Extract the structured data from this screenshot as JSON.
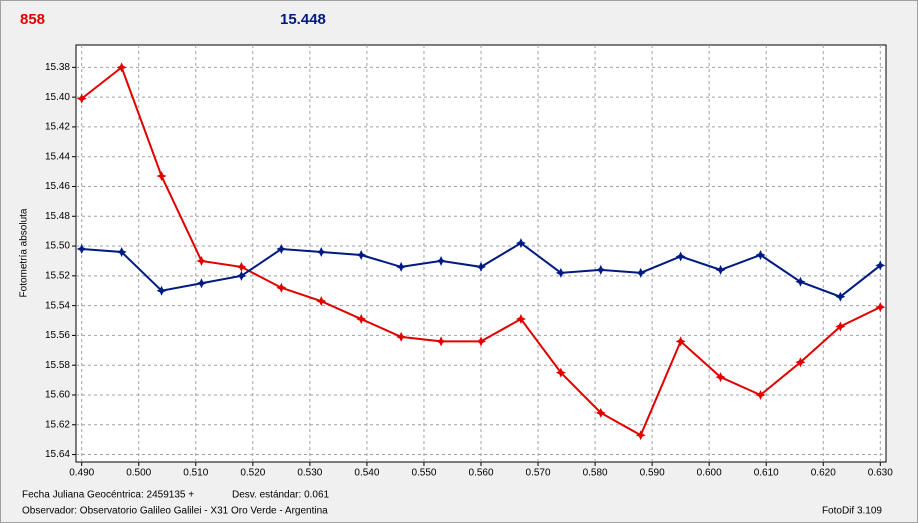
{
  "chart_data": {
    "type": "line",
    "header_left": "858",
    "header_right": "15.448",
    "y_label": "Fotometría absoluta",
    "footer": {
      "date": "Fecha Juliana Geocéntrica: 2459135 +",
      "deviation": "Desv. estándar: 0.061",
      "observer": "Observador: Observatorio Galileo Galilei - X31 Oro Verde - Argentina",
      "version": "FotoDif 3.109"
    },
    "x": [
      0.49,
      0.497,
      0.504,
      0.511,
      0.518,
      0.525,
      0.532,
      0.539,
      0.546,
      0.553,
      0.56,
      0.567,
      0.574,
      0.581,
      0.588,
      0.595,
      0.602,
      0.609,
      0.616,
      0.623,
      0.63
    ],
    "series": [
      {
        "color": "#e00000",
        "values": [
          15.401,
          15.38,
          15.453,
          15.51,
          15.514,
          15.528,
          15.537,
          15.549,
          15.561,
          15.564,
          15.564,
          15.549,
          15.585,
          15.612,
          15.627,
          15.564,
          15.588,
          15.6,
          15.578,
          15.554,
          15.541
        ]
      },
      {
        "color": "#001a80",
        "values": [
          15.502,
          15.504,
          15.53,
          15.525,
          15.52,
          15.502,
          15.504,
          15.506,
          15.514,
          15.51,
          15.514,
          15.498,
          15.518,
          15.516,
          15.518,
          15.507,
          15.516,
          15.506,
          15.524,
          15.534,
          15.513
        ]
      }
    ],
    "xlim": [
      0.489,
      0.631
    ],
    "xticks": [
      {
        "value": 0.49,
        "label": "0.490"
      },
      {
        "value": 0.5,
        "label": "0.500"
      },
      {
        "value": 0.51,
        "label": "0.510"
      },
      {
        "value": 0.52,
        "label": "0.520"
      },
      {
        "value": 0.53,
        "label": "0.530"
      },
      {
        "value": 0.54,
        "label": "0.540"
      },
      {
        "value": 0.55,
        "label": "0.550"
      },
      {
        "value": 0.56,
        "label": "0.560"
      },
      {
        "value": 0.57,
        "label": "0.570"
      },
      {
        "value": 0.58,
        "label": "0.580"
      },
      {
        "value": 0.59,
        "label": "0.590"
      },
      {
        "value": 0.6,
        "label": "0.600"
      },
      {
        "value": 0.61,
        "label": "0.610"
      },
      {
        "value": 0.62,
        "label": "0.620"
      },
      {
        "value": 0.63,
        "label": "0.630"
      }
    ],
    "ylim": [
      15.365,
      15.645
    ],
    "y_inverted": true,
    "yticks": [
      15.38,
      {
        "value": 15.4,
        "label": "15.40"
      },
      15.42,
      15.44,
      15.46,
      15.48,
      {
        "value": 15.5,
        "label": "15.50"
      },
      15.52,
      15.54,
      15.56,
      15.58,
      {
        "value": 15.6,
        "label": "15.60"
      },
      15.62,
      15.64
    ],
    "grid": true
  }
}
